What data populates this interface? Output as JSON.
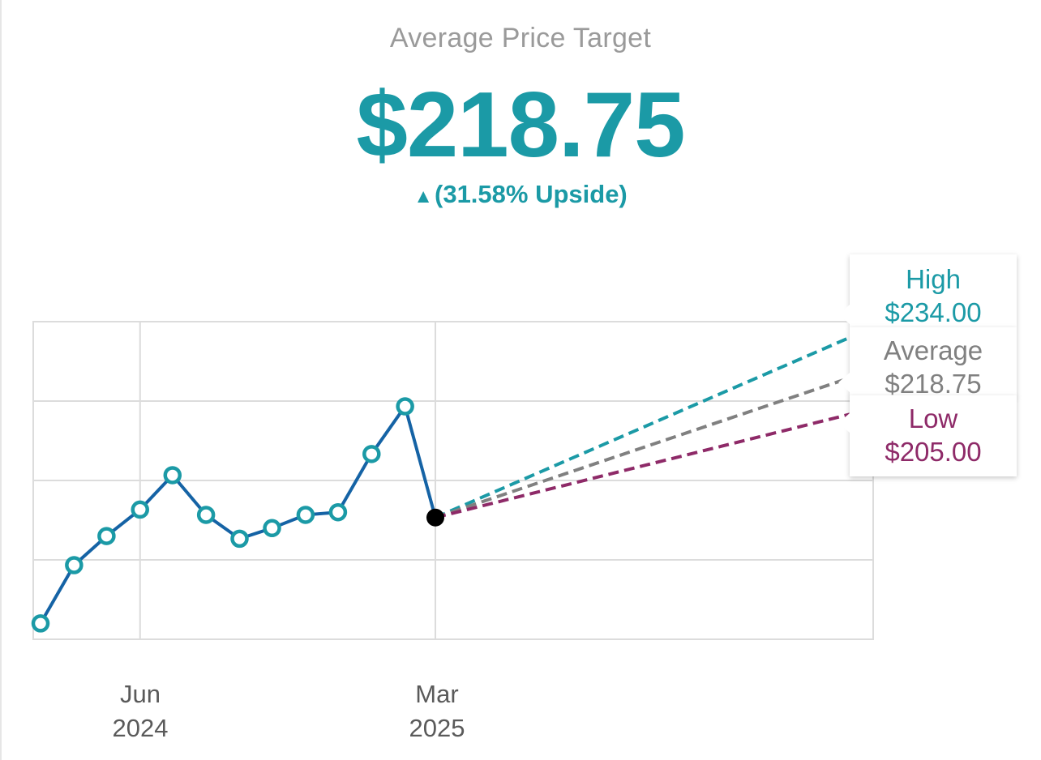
{
  "header": {
    "title": "Average Price Target",
    "value": "$218.75",
    "upside_arrow": "▲",
    "upside": "(31.58% Upside)"
  },
  "targets": {
    "high": {
      "label": "High",
      "value": "$234.00"
    },
    "average": {
      "label": "Average",
      "value": "$218.75"
    },
    "low": {
      "label": "Low",
      "value": "$205.00"
    }
  },
  "colors": {
    "accent": "#1b9aa6",
    "line": "#1563a5",
    "average": "#808080",
    "low": "#8e2a68",
    "grid": "#dcdcdc"
  },
  "chart_data": {
    "type": "line",
    "title": "",
    "xlabel": "",
    "ylabel": "",
    "x_ticks": [
      {
        "month": "Jun",
        "year": "2024"
      },
      {
        "month": "Mar",
        "year": "2025"
      }
    ],
    "ylim": [
      120,
      240
    ],
    "grid": true,
    "series": [
      {
        "values": [
          {
            "date": "2024-03-01",
            "value": 126
          },
          {
            "date": "2024-04-01",
            "value": 148
          },
          {
            "date": "2024-05-01",
            "value": 159
          },
          {
            "date": "2024-06-01",
            "value": 169
          },
          {
            "date": "2024-07-01",
            "value": 182
          },
          {
            "date": "2024-08-01",
            "value": 167
          },
          {
            "date": "2024-09-01",
            "value": 158
          },
          {
            "date": "2024-10-01",
            "value": 162
          },
          {
            "date": "2024-11-01",
            "value": 167
          },
          {
            "date": "2024-12-01",
            "value": 168
          },
          {
            "date": "2025-01-01",
            "value": 190
          },
          {
            "date": "2025-02-01",
            "value": 208
          },
          {
            "date": "2025-03-01",
            "value": 166
          }
        ]
      }
    ],
    "forecast": {
      "start": {
        "date": "2025-03-01",
        "value": 166
      },
      "end_date": "2026-03-01",
      "high": 234.0,
      "average": 218.75,
      "low": 205.0
    }
  }
}
